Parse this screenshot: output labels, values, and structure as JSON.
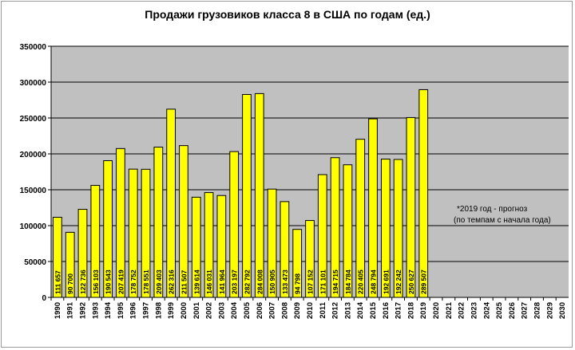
{
  "chart_data": {
    "type": "bar",
    "title": "Продажи грузовиков класса 8 в США по годам (ед.)",
    "xlabel": "",
    "ylabel": "",
    "ylim": [
      0,
      350000
    ],
    "yticks": [
      "0",
      "50000",
      "100000",
      "150000",
      "200000",
      "250000",
      "300000",
      "350000"
    ],
    "grid": true,
    "colors": {
      "bar": "#ffff00",
      "bar_border": "#000000",
      "plot_bg": "#c0c0c0",
      "grid": "#000000"
    },
    "categories": [
      "1990",
      "1991",
      "1992",
      "1993",
      "1994",
      "1995",
      "1996",
      "1997",
      "1998",
      "1999",
      "2000",
      "2001",
      "2002",
      "2003",
      "2004",
      "2005",
      "2006",
      "2007",
      "2008",
      "2009",
      "2010",
      "2011",
      "2012",
      "2013",
      "2014",
      "2015",
      "2016",
      "2017",
      "2018",
      "2019",
      "2020",
      "2021",
      "2022",
      "2023",
      "2024",
      "2025",
      "2026",
      "2027",
      "2028",
      "2029",
      "2030"
    ],
    "values": [
      111657,
      90700,
      122736,
      156103,
      190543,
      207419,
      178752,
      178551,
      209403,
      262316,
      211507,
      139614,
      146031,
      141964,
      203197,
      282792,
      284008,
      150905,
      133473,
      94798,
      107152,
      171101,
      194715,
      184784,
      220405,
      248794,
      192691,
      192242,
      250627,
      289507,
      null,
      null,
      null,
      null,
      null,
      null,
      null,
      null,
      null,
      null,
      null
    ],
    "data_labels": [
      "111 657",
      "90 700",
      "122 736",
      "156 103",
      "190 543",
      "207 419",
      "178 752",
      "178 551",
      "209 403",
      "262 316",
      "211 507",
      "139 614",
      "146 031",
      "141 964",
      "203 197",
      "282 792",
      "284 008",
      "150 905",
      "133 473",
      "94 798",
      "107 152",
      "171 101",
      "194 715",
      "184 784",
      "220 405",
      "248 794",
      "192 691",
      "192 242",
      "250 627",
      "289 507",
      "",
      "",
      "",
      "",
      "",
      "",
      "",
      "",
      "",
      "",
      ""
    ],
    "annotations": [
      "*2019 год - прогноз",
      "(по темпам с начала года)"
    ]
  }
}
